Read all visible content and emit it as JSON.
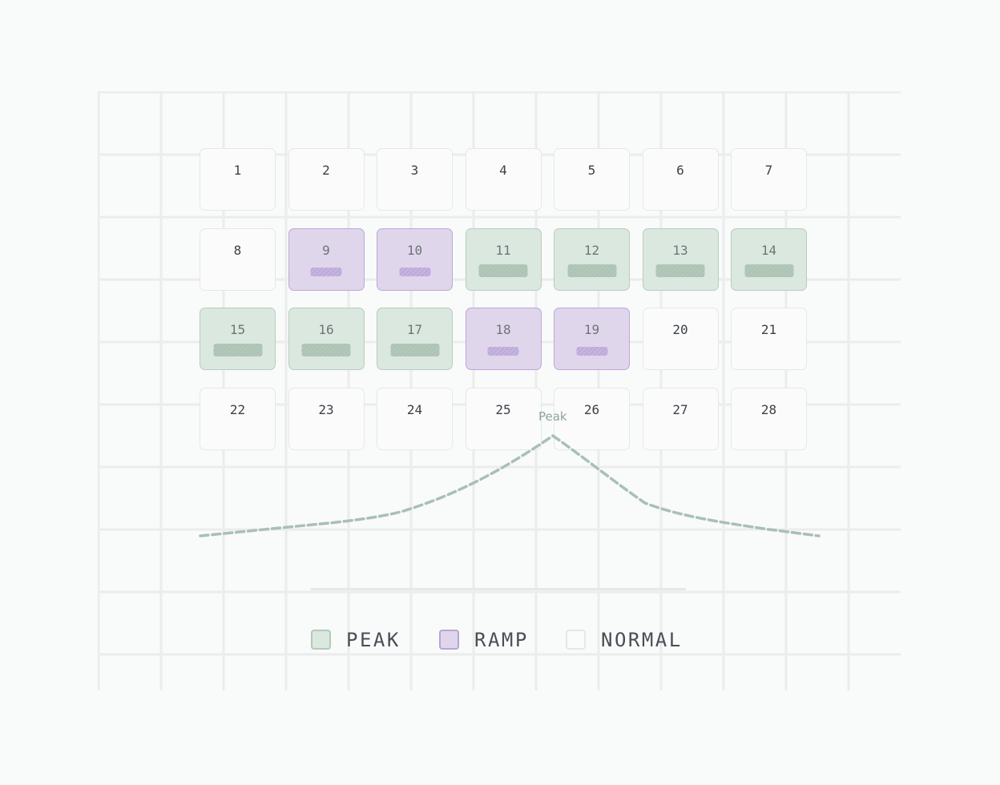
{
  "calendar": {
    "days": [
      {
        "label": "1",
        "state": "normal"
      },
      {
        "label": "2",
        "state": "normal"
      },
      {
        "label": "3",
        "state": "normal"
      },
      {
        "label": "4",
        "state": "normal"
      },
      {
        "label": "5",
        "state": "normal"
      },
      {
        "label": "6",
        "state": "normal"
      },
      {
        "label": "7",
        "state": "normal"
      },
      {
        "label": "8",
        "state": "normal"
      },
      {
        "label": "9",
        "state": "ramp"
      },
      {
        "label": "10",
        "state": "ramp"
      },
      {
        "label": "11",
        "state": "peak"
      },
      {
        "label": "12",
        "state": "peak"
      },
      {
        "label": "13",
        "state": "peak"
      },
      {
        "label": "14",
        "state": "peak"
      },
      {
        "label": "15",
        "state": "peak"
      },
      {
        "label": "16",
        "state": "peak"
      },
      {
        "label": "17",
        "state": "peak"
      },
      {
        "label": "18",
        "state": "ramp"
      },
      {
        "label": "19",
        "state": "ramp"
      },
      {
        "label": "20",
        "state": "normal"
      },
      {
        "label": "21",
        "state": "normal"
      },
      {
        "label": "22",
        "state": "normal"
      },
      {
        "label": "23",
        "state": "normal"
      },
      {
        "label": "24",
        "state": "normal"
      },
      {
        "label": "25",
        "state": "normal"
      },
      {
        "label": "26",
        "state": "normal"
      },
      {
        "label": "27",
        "state": "normal"
      },
      {
        "label": "28",
        "state": "normal"
      }
    ]
  },
  "curve": {
    "peak_label": "Peak",
    "color": "#a9c0b4"
  },
  "legend": {
    "items": [
      {
        "label": "PEAK",
        "state": "peak"
      },
      {
        "label": "RAMP",
        "state": "ramp"
      },
      {
        "label": "NORMAL",
        "state": "normal"
      }
    ]
  },
  "colors": {
    "peak_fill": "#dbe8df",
    "peak_border": "#b7cdbf",
    "ramp_fill": "#e0d6ec",
    "ramp_border": "#bba8d6",
    "normal_fill": "#fbfbfb",
    "normal_border": "#e6e8e8",
    "grid_line": "#ececec"
  }
}
